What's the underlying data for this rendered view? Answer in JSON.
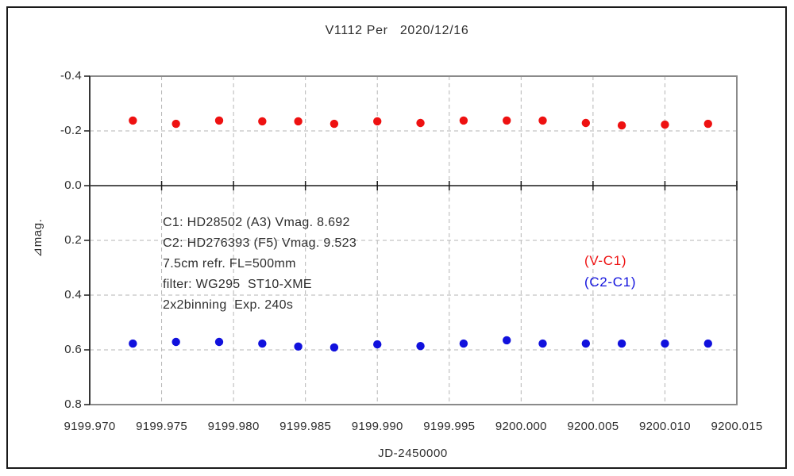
{
  "window": {
    "border_color": "#1a1a1a",
    "background_color": "#ffffff"
  },
  "chart_data": {
    "type": "scatter",
    "title": "V1112 Per   2020/12/16",
    "xlabel": "JD-2450000",
    "ylabel": "⊿mag.",
    "xlim": [
      9199.97,
      9200.015
    ],
    "ylim": [
      -0.4,
      0.8
    ],
    "y_axis_direction": "inverted: magnitude increases downward, -0.4 at top, 0.8 at bottom",
    "x_tick_labels": [
      "9199.970",
      "9199.975",
      "9199.980",
      "9199.985",
      "9199.990",
      "9199.995",
      "9200.000",
      "9200.005",
      "9200.010",
      "9200.015"
    ],
    "y_tick_labels": [
      "-0.4",
      "-0.2",
      "0.0",
      "0.2",
      "0.4",
      "0.6",
      "0.8"
    ],
    "grid": "dashed light-gray gridlines; solid black horizontal line at 0.0",
    "legend_position": "inside plot, center-right",
    "colors": {
      "grid": "#b5b5b5",
      "frame": "#8a8a8a",
      "axis": "#1a1a1a",
      "text": "#2e2e2e"
    },
    "series": [
      {
        "name": "(V-C1)",
        "color": "#ee1111",
        "marker": "circle",
        "x": [
          9199.973,
          9199.976,
          9199.979,
          9199.982,
          9199.9845,
          9199.987,
          9199.99,
          9199.993,
          9199.996,
          9199.999,
          9200.0015,
          9200.0045,
          9200.007,
          9200.01,
          9200.013
        ],
        "y": [
          -0.238,
          -0.226,
          -0.238,
          -0.235,
          -0.235,
          -0.226,
          -0.235,
          -0.229,
          -0.238,
          -0.238,
          -0.238,
          -0.229,
          -0.22,
          -0.223,
          -0.226
        ]
      },
      {
        "name": "(C2-C1)",
        "color": "#1111dd",
        "marker": "circle",
        "x": [
          9199.973,
          9199.976,
          9199.979,
          9199.982,
          9199.9845,
          9199.987,
          9199.99,
          9199.993,
          9199.996,
          9199.999,
          9200.0015,
          9200.0045,
          9200.007,
          9200.01,
          9200.013
        ],
        "y": [
          0.577,
          0.571,
          0.571,
          0.577,
          0.588,
          0.591,
          0.58,
          0.586,
          0.577,
          0.565,
          0.577,
          0.577,
          0.577,
          0.577,
          0.577
        ]
      }
    ],
    "annotations": [
      "C1: HD28502 (A3) Vmag. 8.692",
      "C2: HD276393 (F5) Vmag. 9.523",
      "7.5cm refr. FL=500mm",
      "filter: WG295  ST10-XME",
      "2x2binning  Exp. 240s"
    ]
  }
}
